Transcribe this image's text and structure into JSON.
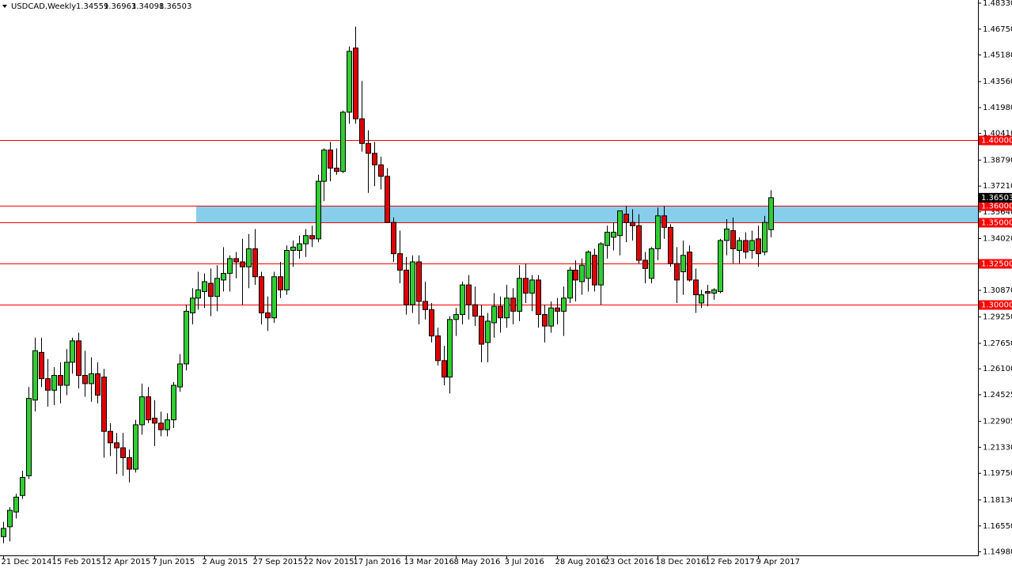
{
  "chart_data": {
    "type": "candlestick",
    "title": "USDCAD,Weekly",
    "categories": [
      "21 Dec 2014",
      null,
      null,
      null,
      null,
      null,
      null,
      null,
      "15 Feb 2015",
      null,
      null,
      null,
      null,
      null,
      null,
      null,
      "12 Apr 2015",
      null,
      null,
      null,
      null,
      null,
      null,
      null,
      "7 Jun 2015",
      null,
      null,
      null,
      null,
      null,
      null,
      null,
      "2 Aug 2015",
      null,
      null,
      null,
      null,
      null,
      null,
      null,
      "27 Sep 2015",
      null,
      null,
      null,
      null,
      null,
      null,
      null,
      "22 Nov 2015",
      null,
      null,
      null,
      null,
      null,
      null,
      null,
      "17 Jan 2016",
      null,
      null,
      null,
      null,
      null,
      null,
      null,
      "13 Mar 2016",
      null,
      null,
      null,
      null,
      null,
      null,
      null,
      "8 May 2016",
      null,
      null,
      null,
      null,
      null,
      null,
      null,
      "3 Jul 2016",
      null,
      null,
      null,
      null,
      null,
      null,
      null,
      "28 Aug 2016",
      null,
      null,
      null,
      null,
      null,
      null,
      null,
      "23 Oct 2016",
      null,
      null,
      null,
      null,
      null,
      null,
      null,
      "18 Dec 2016",
      null,
      null,
      null,
      null,
      null,
      null,
      null,
      "12 Feb 2017",
      null,
      null,
      null,
      null,
      null,
      null,
      null,
      "9 Apr 2017",
      null,
      null
    ],
    "open": [
      1.159,
      1.165,
      1.174,
      1.184,
      1.196,
      1.242,
      1.271,
      1.255,
      1.248,
      1.257,
      1.251,
      1.265,
      1.278,
      1.257,
      1.252,
      1.258,
      1.256,
      1.223,
      1.216,
      1.213,
      1.207,
      1.2,
      1.227,
      1.244,
      1.231,
      1.228,
      1.224,
      1.23,
      1.25,
      1.264,
      1.295,
      1.304,
      1.308,
      1.313,
      1.305,
      1.315,
      1.319,
      1.328,
      1.326,
      1.323,
      1.334,
      1.317,
      1.295,
      1.292,
      1.317,
      1.309,
      1.333,
      1.333,
      1.337,
      1.342,
      1.34,
      1.375,
      1.394,
      1.383,
      1.381,
      1.417,
      1.456,
      1.413,
      1.398,
      1.392,
      1.385,
      1.378,
      1.35,
      1.331,
      1.321,
      1.3,
      1.326,
      1.302,
      1.297,
      1.281,
      1.266,
      1.256,
      1.291,
      1.294,
      1.312,
      1.3,
      1.293,
      1.277,
      1.289,
      1.299,
      1.292,
      1.304,
      1.296,
      1.316,
      1.307,
      1.315,
      1.294,
      1.287,
      1.298,
      1.296,
      1.304,
      1.321,
      1.314,
      1.316,
      1.33,
      1.312,
      1.336,
      1.341,
      1.342,
      1.355,
      1.35,
      1.348,
      1.327,
      1.316,
      1.334,
      1.354,
      1.347,
      1.325,
      1.32,
      1.332,
      1.315,
      1.301,
      1.308,
      1.307,
      1.308,
      1.339,
      1.345,
      1.333,
      1.339,
      1.333,
      1.34,
      1.332,
      1.34559
    ],
    "high": [
      1.168,
      1.177,
      1.185,
      1.199,
      1.25,
      1.28,
      1.28,
      1.267,
      1.262,
      1.265,
      1.273,
      1.28,
      1.283,
      1.272,
      1.268,
      1.265,
      1.261,
      1.228,
      1.222,
      1.222,
      1.212,
      1.23,
      1.252,
      1.25,
      1.242,
      1.235,
      1.234,
      1.253,
      1.27,
      1.3,
      1.31,
      1.32,
      1.319,
      1.322,
      1.324,
      1.335,
      1.33,
      1.332,
      1.34,
      1.343,
      1.346,
      1.32,
      1.305,
      1.32,
      1.326,
      1.336,
      1.339,
      1.342,
      1.346,
      1.348,
      1.379,
      1.395,
      1.399,
      1.395,
      1.418,
      1.457,
      1.469,
      1.436,
      1.406,
      1.399,
      1.39,
      1.383,
      1.353,
      1.345,
      1.329,
      1.33,
      1.33,
      1.314,
      1.301,
      1.286,
      1.275,
      1.293,
      1.298,
      1.314,
      1.318,
      1.311,
      1.3,
      1.295,
      1.307,
      1.305,
      1.312,
      1.31,
      1.324,
      1.325,
      1.318,
      1.318,
      1.3,
      1.302,
      1.304,
      1.311,
      1.323,
      1.327,
      1.328,
      1.333,
      1.334,
      1.338,
      1.348,
      1.35,
      1.357,
      1.36,
      1.358,
      1.355,
      1.332,
      1.335,
      1.359,
      1.36,
      1.349,
      1.335,
      1.339,
      1.336,
      1.322,
      1.309,
      1.312,
      1.31,
      1.34,
      1.352,
      1.353,
      1.341,
      1.344,
      1.345,
      1.348,
      1.354,
      1.36963
    ],
    "low": [
      1.155,
      1.156,
      1.17,
      1.182,
      1.194,
      1.235,
      1.25,
      1.238,
      1.239,
      1.24,
      1.245,
      1.258,
      1.249,
      1.244,
      1.241,
      1.24,
      1.207,
      1.208,
      1.197,
      1.196,
      1.192,
      1.198,
      1.221,
      1.228,
      1.214,
      1.22,
      1.22,
      1.225,
      1.247,
      1.26,
      1.288,
      1.297,
      1.298,
      1.293,
      1.296,
      1.308,
      1.308,
      1.316,
      1.3,
      1.31,
      1.312,
      1.288,
      1.284,
      1.289,
      1.304,
      1.306,
      1.323,
      1.328,
      1.329,
      1.335,
      1.338,
      1.363,
      1.375,
      1.379,
      1.38,
      1.41,
      1.41,
      1.393,
      1.368,
      1.372,
      1.37,
      1.351,
      1.326,
      1.313,
      1.294,
      1.295,
      1.288,
      1.291,
      1.277,
      1.263,
      1.251,
      1.246,
      1.281,
      1.288,
      1.291,
      1.287,
      1.265,
      1.265,
      1.28,
      1.283,
      1.286,
      1.288,
      1.29,
      1.301,
      1.296,
      1.286,
      1.277,
      1.283,
      1.288,
      1.281,
      1.301,
      1.302,
      1.306,
      1.308,
      1.308,
      1.3,
      1.328,
      1.333,
      1.33,
      1.338,
      1.339,
      1.325,
      1.313,
      1.313,
      1.327,
      1.34,
      1.323,
      1.301,
      1.306,
      1.314,
      1.295,
      1.298,
      1.299,
      1.303,
      1.307,
      1.33,
      1.325,
      1.325,
      1.328,
      1.328,
      1.323,
      1.33,
      1.34098
    ],
    "close": [
      1.164,
      1.175,
      1.183,
      1.195,
      1.243,
      1.272,
      1.255,
      1.248,
      1.257,
      1.251,
      1.265,
      1.278,
      1.257,
      1.252,
      1.258,
      1.245,
      1.223,
      1.216,
      1.213,
      1.207,
      1.2,
      1.227,
      1.244,
      1.23,
      1.228,
      1.224,
      1.23,
      1.251,
      1.264,
      1.296,
      1.304,
      1.309,
      1.314,
      1.305,
      1.316,
      1.319,
      1.328,
      1.326,
      1.323,
      1.334,
      1.317,
      1.295,
      1.292,
      1.317,
      1.309,
      1.333,
      1.335,
      1.337,
      1.342,
      1.34,
      1.375,
      1.394,
      1.383,
      1.381,
      1.417,
      1.454,
      1.413,
      1.398,
      1.392,
      1.385,
      1.378,
      1.35,
      1.331,
      1.321,
      1.3,
      1.326,
      1.302,
      1.297,
      1.281,
      1.266,
      1.256,
      1.291,
      1.294,
      1.312,
      1.3,
      1.293,
      1.276,
      1.29,
      1.299,
      1.292,
      1.304,
      1.296,
      1.316,
      1.307,
      1.315,
      1.294,
      1.287,
      1.298,
      1.296,
      1.304,
      1.321,
      1.315,
      1.324,
      1.332,
      1.312,
      1.337,
      1.344,
      1.344,
      1.357,
      1.35,
      1.348,
      1.327,
      1.322,
      1.334,
      1.354,
      1.347,
      1.325,
      1.315,
      1.33,
      1.315,
      1.306,
      1.306,
      1.307,
      1.309,
      1.339,
      1.346,
      1.334,
      1.339,
      1.332,
      1.339,
      1.331,
      1.35,
      1.36503
    ],
    "up_color": "#32cd32",
    "down_color": "#e00000",
    "ylim": [
      1.1476,
      1.4852
    ],
    "yticks": [
      {
        "value": 1.4833,
        "label": "1.48330"
      },
      {
        "value": 1.4675,
        "label": "1.46750"
      },
      {
        "value": 1.4518,
        "label": "1.45180"
      },
      {
        "value": 1.4356,
        "label": "1.43560"
      },
      {
        "value": 1.4198,
        "label": "1.41980"
      },
      {
        "value": 1.4041,
        "label": "1.40410"
      },
      {
        "value": 1.3879,
        "label": "1.38790"
      },
      {
        "value": 1.3721,
        "label": "1.37210"
      },
      {
        "value": 1.3564,
        "label": "1.35640"
      },
      {
        "value": 1.3402,
        "label": "1.34020"
      },
      {
        "value": 1.3087,
        "label": "1.30870"
      },
      {
        "value": 1.2925,
        "label": "1.29250"
      },
      {
        "value": 1.2765,
        "label": "1.27650"
      },
      {
        "value": 1.261,
        "label": "1.26100"
      },
      {
        "value": 1.24525,
        "label": "1.24525"
      },
      {
        "value": 1.22905,
        "label": "1.22905"
      },
      {
        "value": 1.2133,
        "label": "1.21330"
      },
      {
        "value": 1.1975,
        "label": "1.19750"
      },
      {
        "value": 1.1813,
        "label": "1.18130"
      },
      {
        "value": 1.1655,
        "label": "1.16550"
      },
      {
        "value": 1.1498,
        "label": "1.14980"
      }
    ],
    "levels": [
      {
        "value": 1.4,
        "label": "1.40000"
      },
      {
        "value": 1.325,
        "label": "1.32500"
      },
      {
        "value": 1.3,
        "label": "1.30000"
      }
    ],
    "level_color": "#ff0000",
    "zone": {
      "low": {
        "value": 1.35,
        "label": "1.35000"
      },
      "high": {
        "value": 1.36,
        "label": "1.36000"
      },
      "color": "#87ceeb"
    },
    "grid": false
  }
}
